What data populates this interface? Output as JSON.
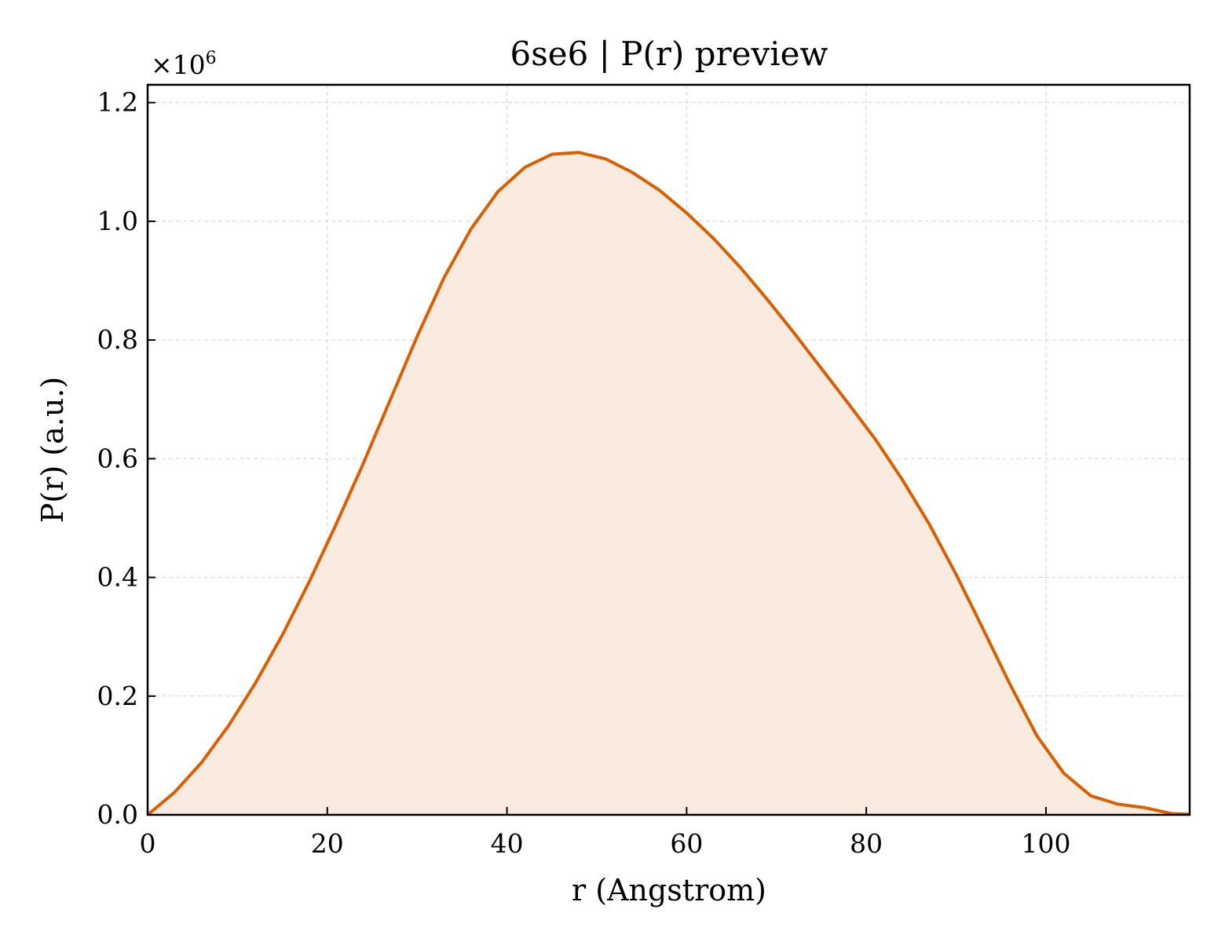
{
  "chart_data": {
    "type": "area",
    "title": "6se6 | P(r) preview",
    "xlabel": "r (Angstrom)",
    "ylabel": "P(r) (a.u.)",
    "y_multiplier_label": "×10",
    "y_multiplier_exponent": "6",
    "xlim": [
      0,
      116
    ],
    "ylim": [
      0,
      1.23
    ],
    "xticks": [
      0,
      20,
      40,
      60,
      80,
      100
    ],
    "xtick_labels": [
      "0",
      "20",
      "40",
      "60",
      "80",
      "100"
    ],
    "yticks": [
      0.0,
      0.2,
      0.4,
      0.6,
      0.8,
      1.0,
      1.2
    ],
    "ytick_labels": [
      "0.0",
      "0.2",
      "0.4",
      "0.6",
      "0.8",
      "1.0",
      "1.2"
    ],
    "grid": true,
    "line_color": "#d95f02",
    "fill_color": "#f9ebdf",
    "series": [
      {
        "x": [
          0,
          3,
          6,
          9,
          12,
          15,
          18,
          21,
          24,
          27,
          30,
          33,
          36,
          39,
          42,
          45,
          48,
          51,
          54,
          57,
          60,
          63,
          66,
          69,
          72,
          75,
          78,
          81,
          84,
          87,
          90,
          93,
          96,
          99,
          102,
          105,
          108,
          111,
          114,
          116
        ],
        "y": [
          0.0,
          0.038,
          0.088,
          0.15,
          0.222,
          0.303,
          0.393,
          0.49,
          0.592,
          0.699,
          0.806,
          0.905,
          0.987,
          1.05,
          1.091,
          1.113,
          1.116,
          1.105,
          1.082,
          1.052,
          1.014,
          0.971,
          0.922,
          0.868,
          0.811,
          0.752,
          0.693,
          0.633,
          0.565,
          0.49,
          0.405,
          0.313,
          0.22,
          0.133,
          0.07,
          0.032,
          0.018,
          0.012,
          0.002,
          0.001
        ]
      }
    ]
  }
}
